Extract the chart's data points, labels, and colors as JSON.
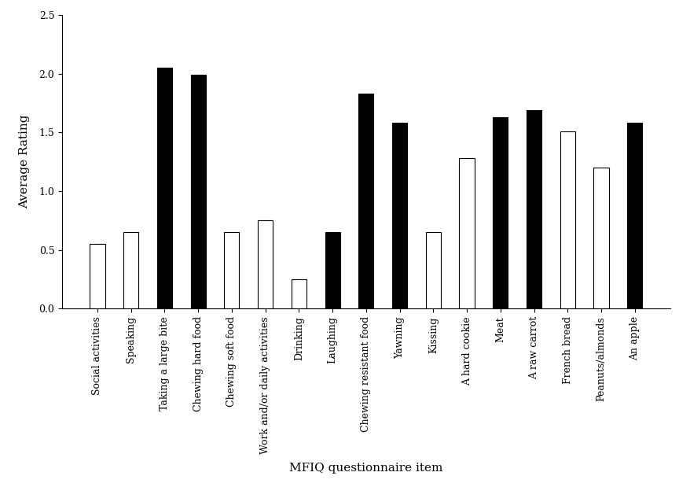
{
  "categories": [
    "Social activities",
    "Speaking",
    "Taking a large bite",
    "Chewing hard food",
    "Chewing soft food",
    "Work and/or daily activities",
    "Drinking",
    "Laughing",
    "Chewing resistant food",
    "Yawning",
    "Kissing",
    "A hard cookie",
    "Meat",
    "A raw carrot",
    "French bread",
    "Peanuts/almonds",
    "An apple"
  ],
  "values": [
    0.55,
    0.65,
    2.05,
    1.99,
    0.65,
    0.75,
    0.25,
    0.65,
    1.83,
    1.58,
    0.65,
    1.28,
    1.63,
    1.69,
    1.51,
    1.2,
    1.58
  ],
  "bar_colors": [
    "white",
    "white",
    "black",
    "black",
    "white",
    "white",
    "white",
    "black",
    "black",
    "black",
    "white",
    "white",
    "black",
    "black",
    "white",
    "white",
    "black"
  ],
  "edgecolors": [
    "black",
    "black",
    "black",
    "black",
    "black",
    "black",
    "black",
    "black",
    "black",
    "black",
    "black",
    "black",
    "black",
    "black",
    "black",
    "black",
    "black"
  ],
  "xlabel": "MFIQ questionnaire item",
  "ylabel": "Average Rating",
  "ylim": [
    0,
    2.5
  ],
  "yticks": [
    0,
    0.5,
    1.0,
    1.5,
    2.0,
    2.5
  ],
  "background_color": "#ffffff",
  "bar_width": 0.45,
  "font_family": "Times New Roman",
  "tick_fontsize": 9,
  "label_fontsize": 11
}
